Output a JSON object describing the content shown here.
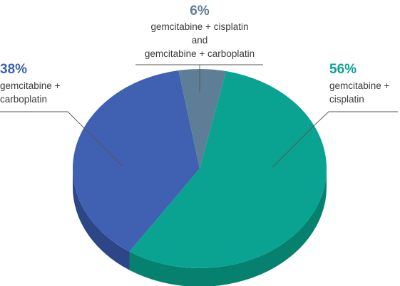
{
  "chart_data": {
    "type": "pie",
    "style": "3d",
    "slices": [
      {
        "percent_label": "56%",
        "value": 56,
        "label_lines": [
          "gemcitabine +",
          "cisplatin"
        ],
        "color": "#0aa391",
        "side_color": "#06806f"
      },
      {
        "percent_label": "38%",
        "value": 38,
        "label_lines": [
          "gemcitabine +",
          "carboplatin"
        ],
        "color": "#4060b2",
        "side_color": "#2d4687"
      },
      {
        "percent_label": "6%",
        "value": 6,
        "label_lines": [
          "gemcitabine + cisplatin",
          "and",
          "gemcitabine + carboplatin"
        ],
        "color": "#5d7e96",
        "side_color": "#44606f"
      }
    ]
  }
}
